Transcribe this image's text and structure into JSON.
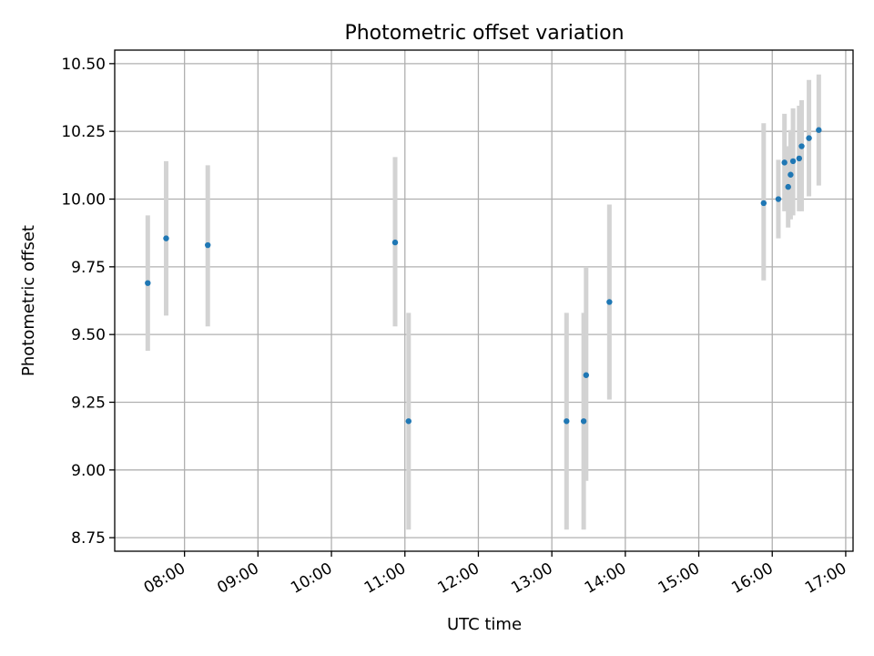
{
  "chart_data": {
    "type": "scatter",
    "title": "Photometric offset variation",
    "xlabel": "UTC time",
    "ylabel": "Photometric offset",
    "xlim": [
      "07:03",
      "17:06"
    ],
    "ylim": [
      8.7,
      10.55
    ],
    "grid": true,
    "x_ticks": [
      "08:00",
      "09:00",
      "10:00",
      "11:00",
      "12:00",
      "13:00",
      "14:00",
      "15:00",
      "16:00",
      "17:00"
    ],
    "y_ticks": [
      "8.75",
      "9.00",
      "9.25",
      "9.50",
      "9.75",
      "10.00",
      "10.25",
      "10.50"
    ],
    "colors": {
      "point": "#1f77b4",
      "errorbar": "#d3d3d3",
      "grid": "#b0b0b0"
    },
    "series": [
      {
        "points": [
          {
            "time": "07:30",
            "y": 9.69,
            "ylow": 9.44,
            "yhigh": 9.94
          },
          {
            "time": "07:45",
            "y": 9.855,
            "ylow": 9.57,
            "yhigh": 10.14
          },
          {
            "time": "08:19",
            "y": 9.83,
            "ylow": 9.53,
            "yhigh": 10.125
          },
          {
            "time": "10:52",
            "y": 9.84,
            "ylow": 9.53,
            "yhigh": 10.155
          },
          {
            "time": "11:03",
            "y": 9.18,
            "ylow": 8.78,
            "yhigh": 9.58
          },
          {
            "time": "13:12",
            "y": 9.18,
            "ylow": 8.78,
            "yhigh": 9.58
          },
          {
            "time": "13:26",
            "y": 9.18,
            "ylow": 8.78,
            "yhigh": 9.58
          },
          {
            "time": "13:28",
            "y": 9.35,
            "ylow": 8.96,
            "yhigh": 9.75
          },
          {
            "time": "13:47",
            "y": 9.62,
            "ylow": 9.26,
            "yhigh": 9.98
          },
          {
            "time": "15:53",
            "y": 9.985,
            "ylow": 9.7,
            "yhigh": 10.28
          },
          {
            "time": "16:05",
            "y": 10.0,
            "ylow": 9.855,
            "yhigh": 10.145
          },
          {
            "time": "16:10",
            "y": 10.135,
            "ylow": 9.955,
            "yhigh": 10.315
          },
          {
            "time": "16:13",
            "y": 10.045,
            "ylow": 9.895,
            "yhigh": 10.195
          },
          {
            "time": "16:15",
            "y": 10.09,
            "ylow": 9.925,
            "yhigh": 10.255
          },
          {
            "time": "16:17",
            "y": 10.14,
            "ylow": 9.94,
            "yhigh": 10.335
          },
          {
            "time": "16:22",
            "y": 10.15,
            "ylow": 9.955,
            "yhigh": 10.345
          },
          {
            "time": "16:24",
            "y": 10.195,
            "ylow": 9.955,
            "yhigh": 10.365
          },
          {
            "time": "16:30",
            "y": 10.225,
            "ylow": 10.01,
            "yhigh": 10.44
          },
          {
            "time": "16:38",
            "y": 10.255,
            "ylow": 10.05,
            "yhigh": 10.46
          }
        ]
      }
    ]
  }
}
